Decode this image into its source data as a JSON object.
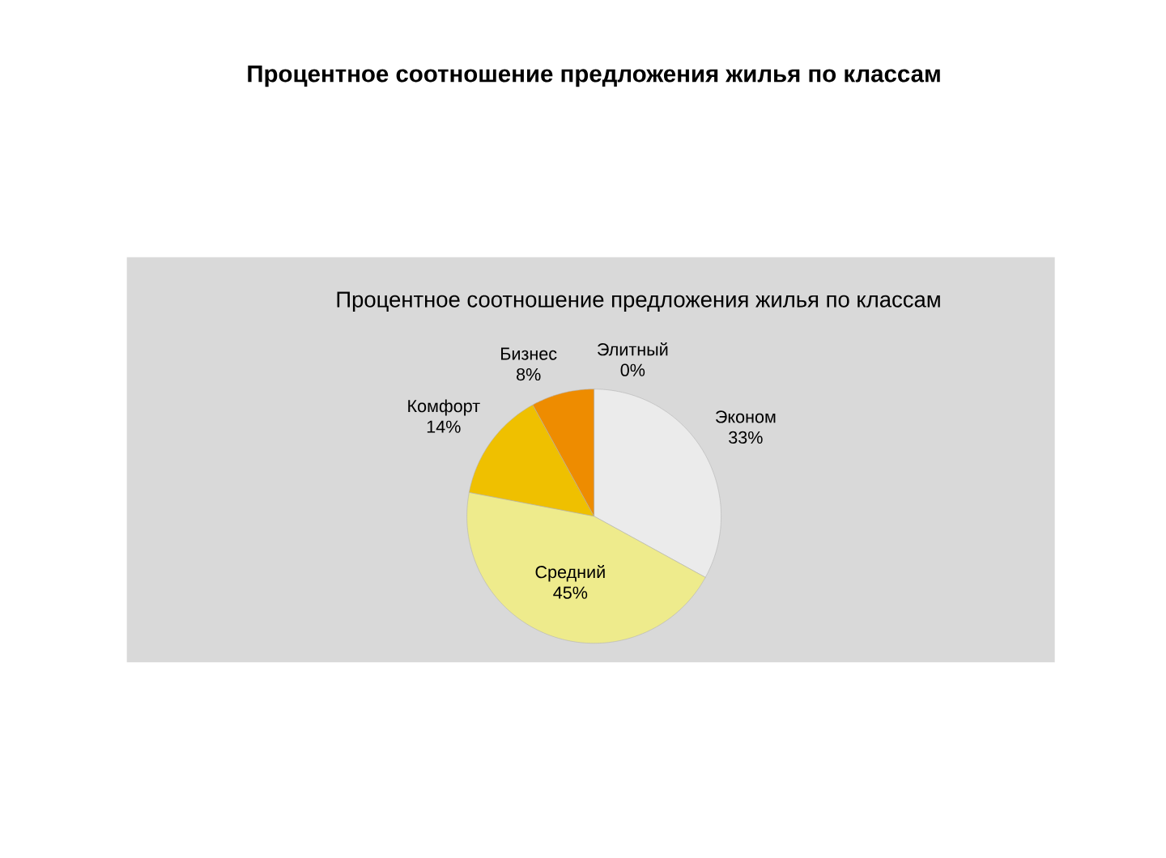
{
  "chart_data": {
    "type": "pie",
    "title": "Процентное соотношение предложения жилья по классам",
    "subtitle": "Процентное соотношение предложения жилья по классам",
    "categories": [
      "Эконом",
      "Средний",
      "Комфорт",
      "Бизнес",
      "Элитный"
    ],
    "values": [
      33,
      45,
      14,
      8,
      0
    ],
    "colors": [
      "#ebebeb",
      "#eeeb8c",
      "#efc000",
      "#ee8c00",
      null
    ],
    "value_labels": [
      "33%",
      "45%",
      "14%",
      "8%",
      "0%"
    ]
  }
}
